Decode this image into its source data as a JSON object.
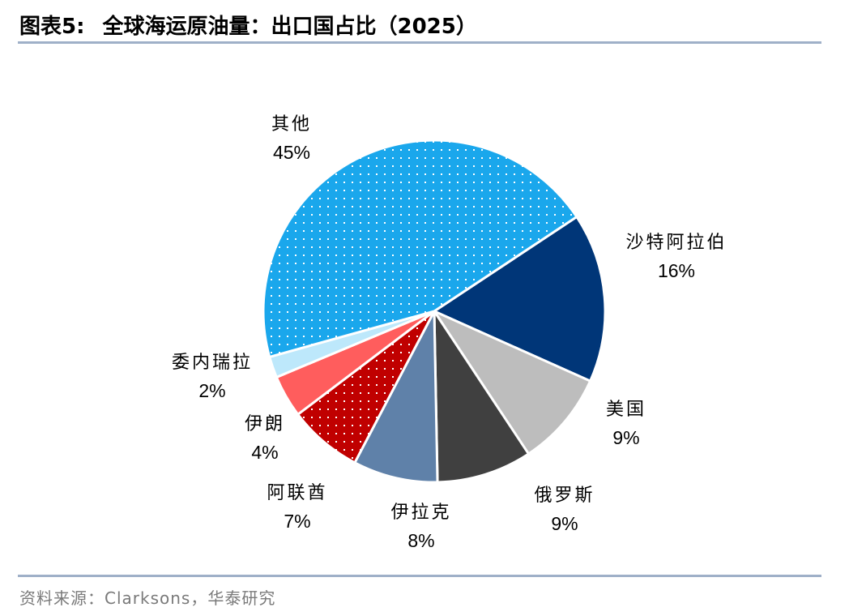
{
  "header": {
    "figure_label": "图表5:",
    "title": "全球海运原油量：出口国占比（2025）"
  },
  "source": "资料来源：Clarksons，华泰研究",
  "chart_data": {
    "type": "pie",
    "title": "全球海运原油量：出口国占比（2025）",
    "slices": [
      {
        "label": "沙特阿拉伯",
        "value": 16,
        "value_label": "16%",
        "color": "#003678",
        "pattern": "solid"
      },
      {
        "label": "美国",
        "value": 9,
        "value_label": "9%",
        "color": "#bdbdbd",
        "pattern": "solid"
      },
      {
        "label": "俄罗斯",
        "value": 9,
        "value_label": "9%",
        "color": "#404040",
        "pattern": "solid"
      },
      {
        "label": "伊拉克",
        "value": 8,
        "value_label": "8%",
        "color": "#5f81a9",
        "pattern": "solid"
      },
      {
        "label": "阿联酋",
        "value": 7,
        "value_label": "7%",
        "color": "#c00000",
        "pattern": "dotted"
      },
      {
        "label": "伊朗",
        "value": 4,
        "value_label": "4%",
        "color": "#ff5d5d",
        "pattern": "solid"
      },
      {
        "label": "委内瑞拉",
        "value": 2,
        "value_label": "2%",
        "color": "#bde8fb",
        "pattern": "solid"
      },
      {
        "label": "其他",
        "value": 45,
        "value_label": "45%",
        "color": "#1aa7ec",
        "pattern": "dotted"
      }
    ],
    "legend": "none",
    "labels": "outside"
  }
}
